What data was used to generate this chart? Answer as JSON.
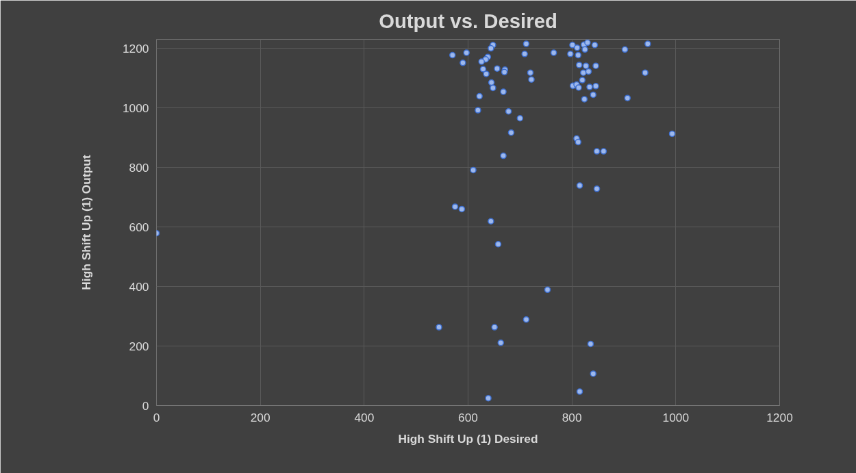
{
  "chart_data": {
    "type": "scatter",
    "title": "Output vs. Desired",
    "xlabel": "High Shift Up (1) Desired",
    "ylabel": "High Shift Up (1) Output",
    "xlim": [
      0,
      1200
    ],
    "ylim": [
      0,
      1230
    ],
    "xticks": [
      0,
      200,
      400,
      600,
      800,
      1000,
      1200
    ],
    "yticks": [
      0,
      200,
      400,
      600,
      800,
      1000,
      1200
    ],
    "grid": true,
    "marker": "circle",
    "series": [
      {
        "color": "#9db8ec",
        "x": [
          0,
          570,
          597,
          590,
          648,
          644,
          638,
          634,
          626,
          629,
          635,
          656,
          671,
          670,
          645,
          648,
          668,
          622,
          619,
          678,
          700,
          683,
          712,
          709,
          720,
          722,
          765,
          797,
          812,
          801,
          810,
          823,
          830,
          825,
          844,
          814,
          827,
          846,
          822,
          832,
          820,
          802,
          809,
          813,
          834,
          846,
          841,
          824,
          902,
          946,
          941,
          907,
          993,
          809,
          812,
          848,
          861,
          668,
          610,
          815,
          848,
          575,
          588,
          644,
          658,
          753,
          712,
          544,
          651,
          663,
          836,
          841,
          815,
          639
        ],
        "values": [
          579,
          1177,
          1185,
          1151,
          1211,
          1200,
          1171,
          1163,
          1155,
          1130,
          1114,
          1132,
          1128,
          1120,
          1085,
          1067,
          1054,
          1039,
          992,
          988,
          965,
          917,
          1215,
          1181,
          1118,
          1095,
          1185,
          1181,
          1177,
          1211,
          1202,
          1212,
          1219,
          1196,
          1211,
          1144,
          1141,
          1141,
          1118,
          1122,
          1093,
          1074,
          1078,
          1068,
          1070,
          1073,
          1044,
          1029,
          1196,
          1215,
          1118,
          1033,
          913,
          897,
          885,
          854,
          854,
          839,
          791,
          739,
          728,
          668,
          660,
          619,
          542,
          389,
          289,
          263,
          263,
          211,
          207,
          107,
          47,
          25
        ]
      }
    ]
  }
}
